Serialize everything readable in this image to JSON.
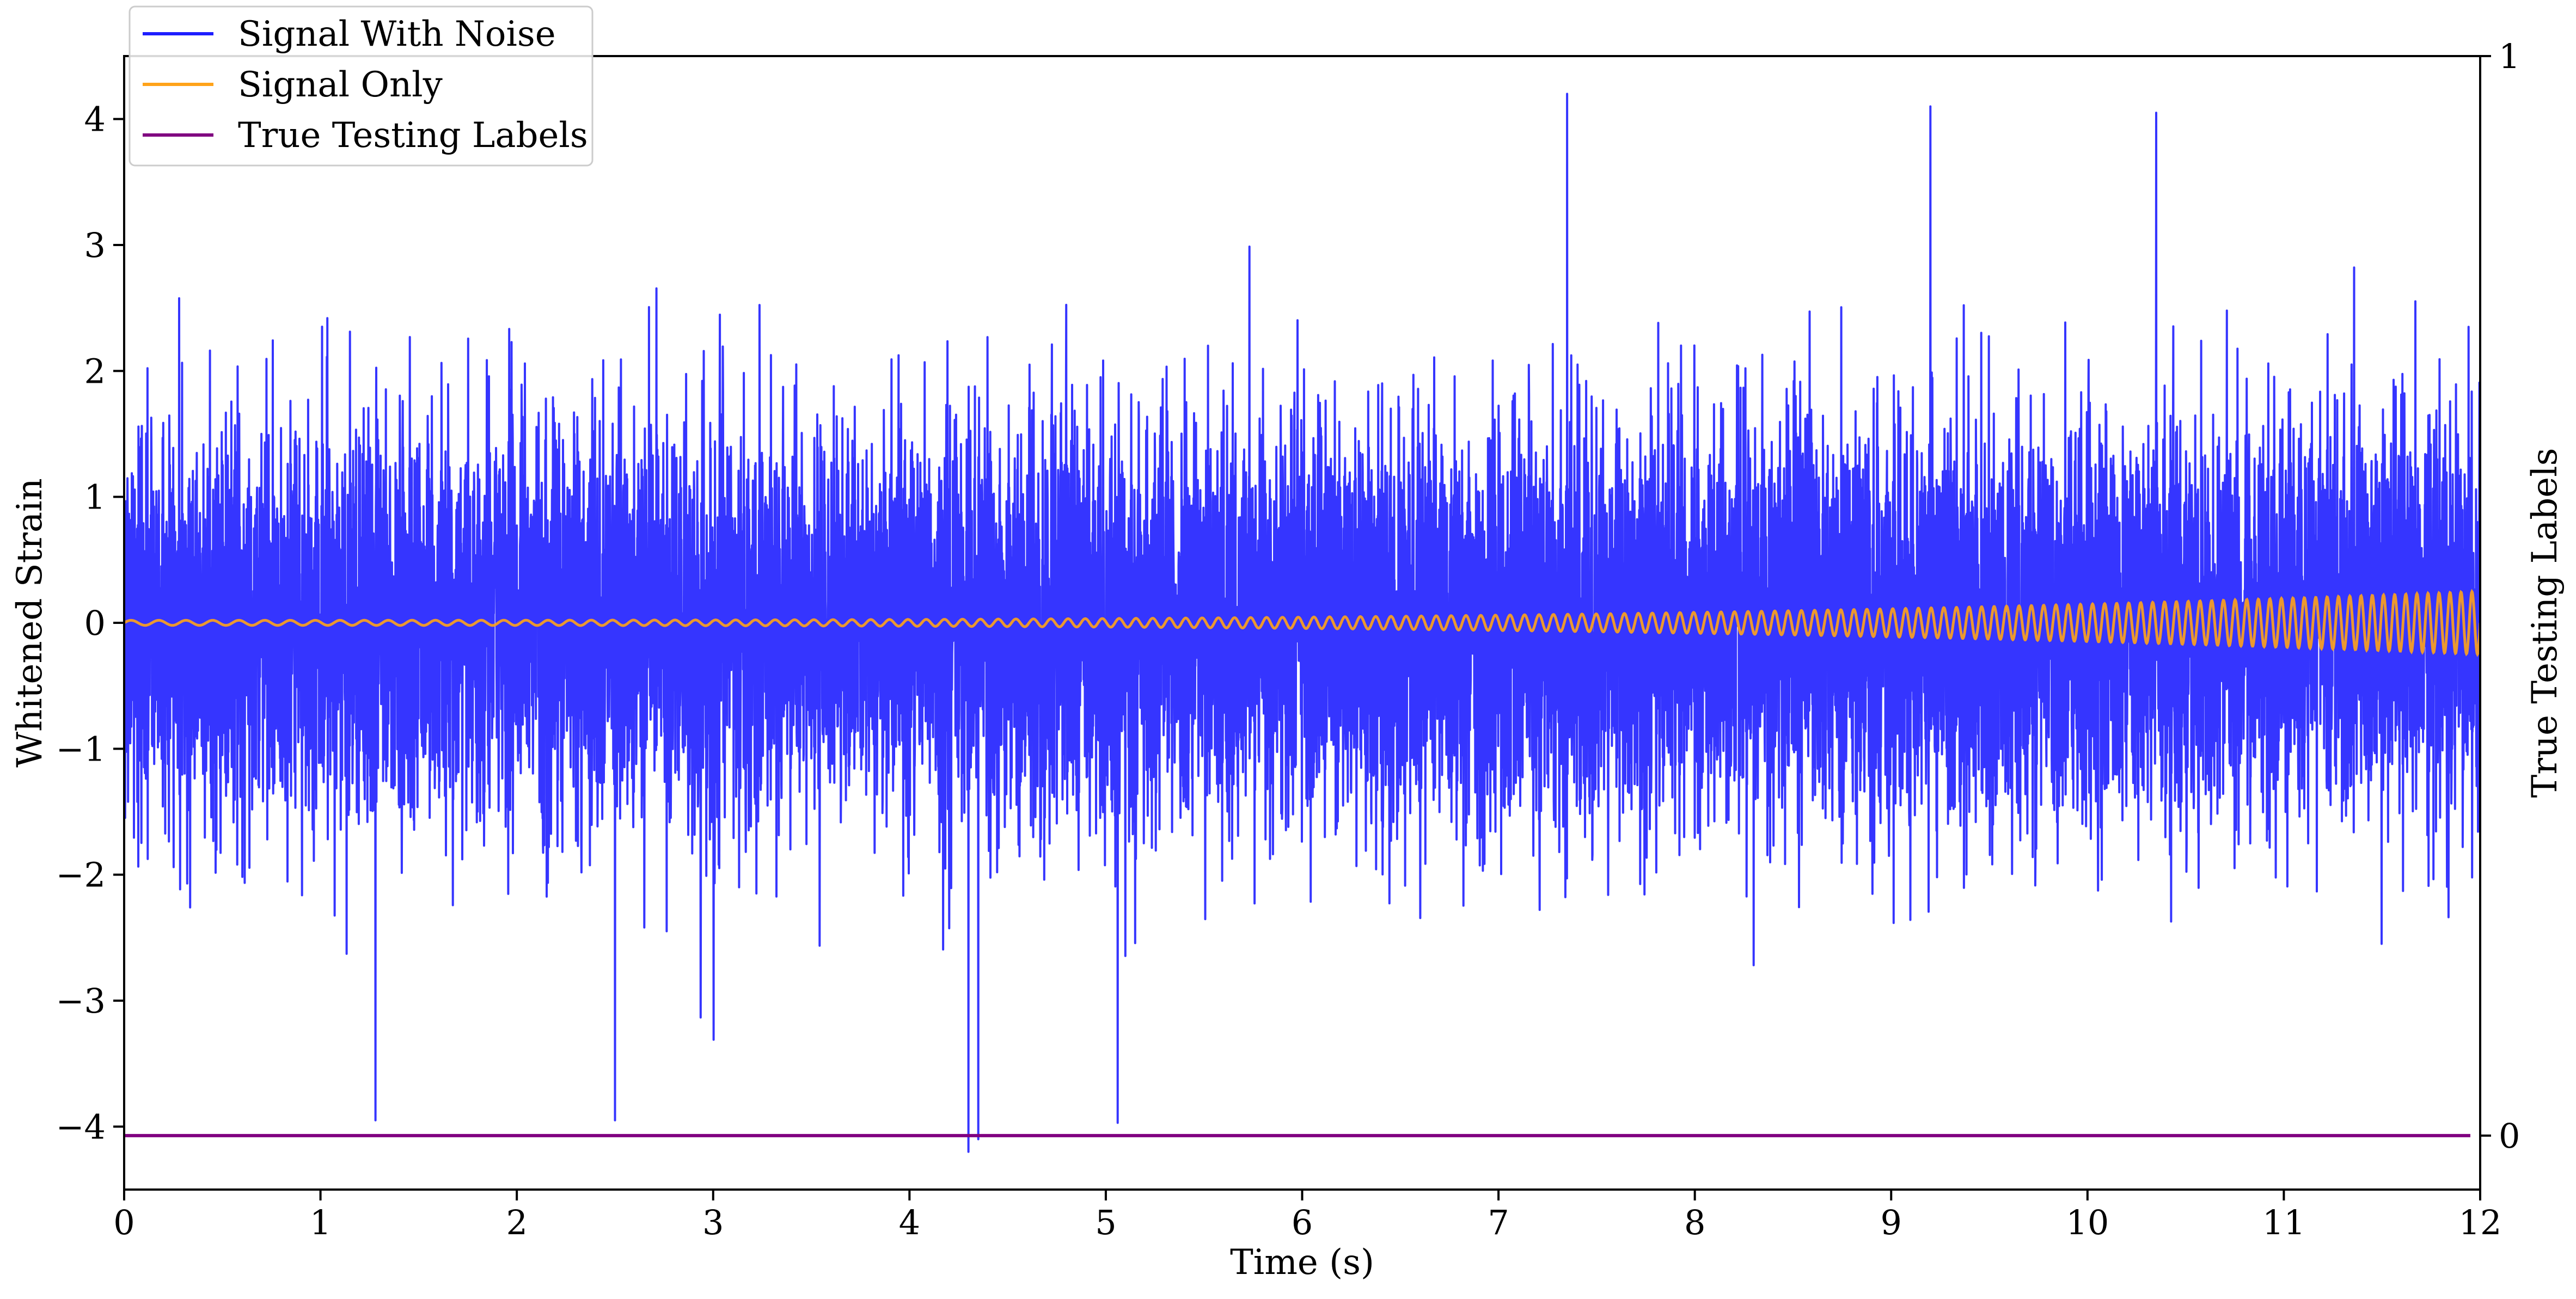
{
  "chart_data": {
    "type": "line",
    "xlabel": "Time (s)",
    "ylabel": "Whitened Strain",
    "y2label": "True Testing Labels",
    "xlim": [
      0,
      12
    ],
    "ylim": [
      -4.5,
      4.5
    ],
    "y2lim": [
      -0.05,
      1.0
    ],
    "xticks": [
      0,
      1,
      2,
      3,
      4,
      5,
      6,
      7,
      8,
      9,
      10,
      11,
      12
    ],
    "yticks": [
      -4,
      -3,
      -2,
      -1,
      0,
      1,
      2,
      3,
      4
    ],
    "yticklabels": [
      "−4",
      "−3",
      "−2",
      "−1",
      "0",
      "1",
      "2",
      "3",
      "4"
    ],
    "y2ticks": [
      0,
      1
    ],
    "grid": false,
    "legend_position": "top-left",
    "series": [
      {
        "name": "Signal With Noise",
        "axis": "left",
        "color": "#1f1fff",
        "description_kind": "gaussian-noise",
        "approx_std": 0.8,
        "min_peak": -4.2,
        "max_peak": 4.2,
        "notable_peaks": [
          {
            "x": 7.35,
            "y": 4.2
          },
          {
            "x": 9.2,
            "y": 4.1
          },
          {
            "x": 10.35,
            "y": 4.05
          },
          {
            "x": 4.3,
            "y": -4.2
          },
          {
            "x": 4.35,
            "y": -4.1
          },
          {
            "x": 1.28,
            "y": -3.95
          },
          {
            "x": 2.5,
            "y": -3.95
          },
          {
            "x": 5.06,
            "y": -3.97
          }
        ]
      },
      {
        "name": "Signal Only",
        "axis": "left",
        "color": "#ffa31a",
        "description_kind": "chirp",
        "start_amplitude": 0.02,
        "end_amplitude": 0.25,
        "start_cycles_per_s": 7,
        "end_cycles_per_s": 18
      },
      {
        "name": "True Testing Labels",
        "axis": "right",
        "color": "#800080",
        "x": [
          0,
          11.95
        ],
        "y": [
          0,
          0
        ]
      }
    ]
  }
}
